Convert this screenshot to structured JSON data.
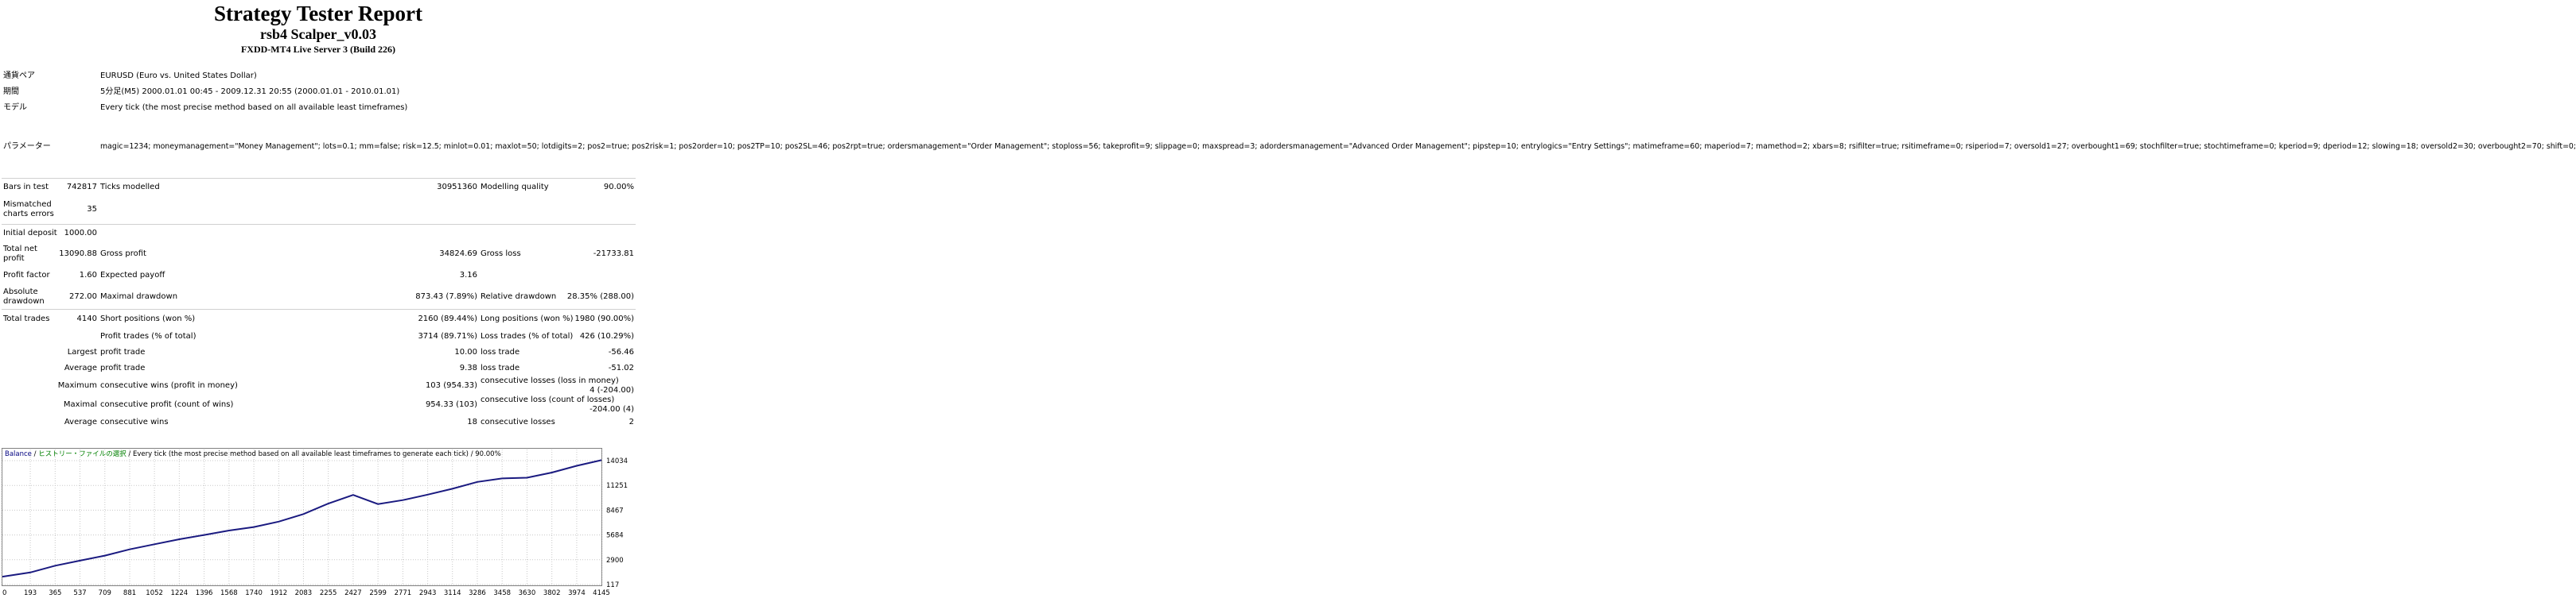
{
  "header": {
    "title": "Strategy Tester Report",
    "subtitle": "rsb4 Scalper_v0.03",
    "server": "FXDD-MT4 Live Server 3 (Build 226)"
  },
  "info": {
    "symbol_label": "通貨ペア",
    "symbol_value": "EURUSD (Euro vs. United States Dollar)",
    "period_label": "期間",
    "period_value": "5分足(M5) 2000.01.01 00:45 - 2009.12.31 20:55 (2000.01.01 - 2010.01.01)",
    "model_label": "モデル",
    "model_value": "Every tick (the most precise method based on all available least timeframes)",
    "params_label": "パラメーター",
    "params_value": "magic=1234; moneymanagement=\"Money Management\"; lots=0.1; mm=false; risk=12.5; minlot=0.01; maxlot=50; lotdigits=2; pos2=true; pos2risk=1; pos2order=10; pos2TP=10; pos2SL=46; pos2rpt=true; ordersmanagement=\"Order Management\"; stoploss=56; takeprofit=9; slippage=0; maxspread=3; adordersmanagement=\"Advanced Order Management\"; pipstep=10; entrylogics=\"Entry Settings\"; matimeframe=60; maperiod=7; mamethod=2; xbars=8; rsifilter=true; rsitimeframe=0; rsiperiod=7; oversold1=27; overbought1=69; stochfilter=true; stochtimeframe=0; kperiod=9; dperiod=12; slowing=18; oversold2=30; overbought2=70; shift=0;"
  },
  "stats": {
    "bars_label": "Bars in test",
    "bars_value": "742817",
    "ticks_label": "Ticks modelled",
    "ticks_value": "30951360",
    "quality_label": "Modelling quality",
    "quality_value": "90.00%",
    "mismatch_label": "Mismatched charts errors",
    "mismatch_value": "35",
    "deposit_label": "Initial deposit",
    "deposit_value": "1000.00",
    "netprofit_label": "Total net profit",
    "netprofit_value": "13090.88",
    "grossprofit_label": "Gross profit",
    "grossprofit_value": "34824.69",
    "grossloss_label": "Gross loss",
    "grossloss_value": "-21733.81",
    "pf_label": "Profit factor",
    "pf_value": "1.60",
    "payoff_label": "Expected payoff",
    "payoff_value": "3.16",
    "absdd_label": "Absolute drawdown",
    "absdd_value": "272.00",
    "maxdd_label": "Maximal drawdown",
    "maxdd_value": "873.43 (7.89%)",
    "reldd_label": "Relative drawdown",
    "reldd_value": "28.35% (288.00)",
    "trades_label": "Total trades",
    "trades_value": "4140",
    "short_label": "Short positions (won %)",
    "short_value": "2160 (89.44%)",
    "long_label": "Long positions (won %)",
    "long_value": "1980 (90.00%)",
    "profittrades_label": "Profit trades (% of total)",
    "profittrades_value": "3714 (89.71%)",
    "losstrades_label": "Loss trades (% of total)",
    "losstrades_value": "426 (10.29%)",
    "largest_label": "Largest",
    "largest_profit_label": "profit trade",
    "largest_profit_value": "10.00",
    "largest_loss_label": "loss trade",
    "largest_loss_value": "-56.46",
    "average_label": "Average",
    "average_profit_label": "profit trade",
    "average_profit_value": "9.38",
    "average_loss_label": "loss trade",
    "average_loss_value": "-51.02",
    "maximum_label": "Maximum",
    "max_wins_label": "consecutive wins (profit in money)",
    "max_wins_value": "103 (954.33)",
    "max_losses_label": "consecutive losses (loss in money)",
    "max_losses_value": "4 (-204.00)",
    "maximal_label": "Maximal",
    "maximal_profit_label": "consecutive profit (count of wins)",
    "maximal_profit_value": "954.33 (103)",
    "maximal_loss_label": "consecutive loss (count of losses)",
    "maximal_loss_value": "-204.00 (4)",
    "avgcons_label": "Average",
    "avg_wins_label": "consecutive wins",
    "avg_wins_value": "18",
    "avg_losses_label": "consecutive losses",
    "avg_losses_value": "2"
  },
  "chart_legend": {
    "balance": "Balance",
    "sep1": " / ",
    "history": "ヒストリー・ファイルの選択",
    "rest": " / Every tick (the most precise method based on all available least timeframes to generate each tick) / 90.00%"
  },
  "colors": {
    "balance_line": "#1a1a80",
    "history_text": "#008000",
    "balance_text": "#000080",
    "grid": "#c8c8c8"
  },
  "chart_data": {
    "type": "line",
    "title": "",
    "x_ticks": [
      "0",
      "193",
      "365",
      "537",
      "709",
      "881",
      "1052",
      "1224",
      "1396",
      "1568",
      "1740",
      "1912",
      "2083",
      "2255",
      "2427",
      "2599",
      "2771",
      "2943",
      "3114",
      "3286",
      "3458",
      "3630",
      "3802",
      "3974",
      "4145"
    ],
    "y_ticks": [
      "14034",
      "11251",
      "8467",
      "5684",
      "2900",
      "117"
    ],
    "xlim": [
      0,
      4145
    ],
    "ylim": [
      117,
      14034
    ],
    "series": [
      {
        "x": [
          0,
          193,
          365,
          537,
          709,
          881,
          1052,
          1224,
          1396,
          1568,
          1740,
          1912,
          2083,
          2255,
          2427,
          2599,
          2771,
          2943,
          3114,
          3286,
          3458,
          3630,
          3802,
          3974,
          4145
        ],
        "values": [
          1000,
          1470,
          2230,
          2800,
          3360,
          4070,
          4640,
          5200,
          5680,
          6180,
          6580,
          7180,
          8030,
          9220,
          10180,
          9150,
          9600,
          10220,
          10880,
          11640,
          12040,
          12120,
          12700,
          13450,
          14090
        ]
      }
    ]
  }
}
